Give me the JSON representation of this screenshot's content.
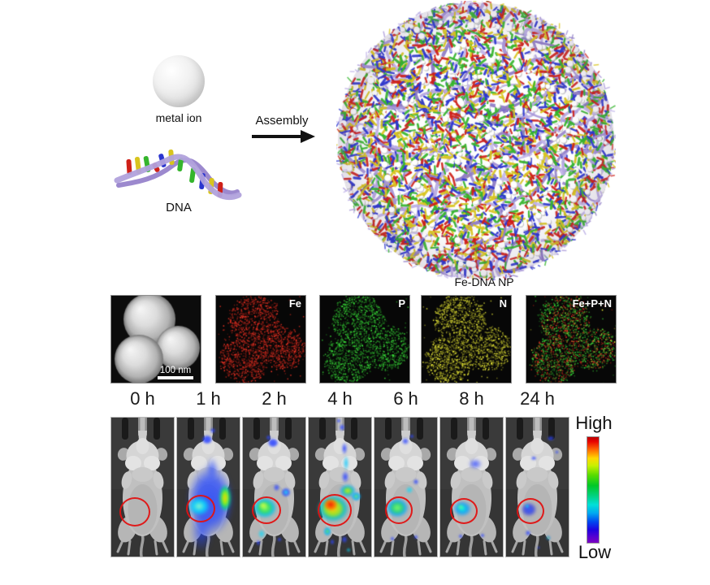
{
  "figure": {
    "schematic": {
      "metal_ion_label": "metal ion",
      "dna_label": "DNA",
      "assembly_label": "Assembly",
      "product_label": "Fe-DNA NP"
    },
    "em_row": {
      "tem_scale_bar": "100 nm",
      "panels": [
        {
          "label": ""
        },
        {
          "label": "Fe"
        },
        {
          "label": "P"
        },
        {
          "label": "N"
        },
        {
          "label": "Fe+P+N"
        }
      ]
    },
    "imaging": {
      "timepoints": [
        "0 h",
        "1 h",
        "2 h",
        "4 h",
        "6 h",
        "8 h",
        "24 h"
      ],
      "colorbar": {
        "high_label": "High",
        "low_label": "Low"
      }
    },
    "colors": {
      "fe_map": "#d42a1e",
      "p_map": "#2fb52f",
      "n_map": "#c6c62e",
      "dna_ribbon": "#b1a2dc",
      "dna_ribbon_back": "#9c89ce",
      "rod_red": "#cf2018",
      "rod_yellow": "#d8c41e",
      "rod_green": "#35b52c",
      "rod_blue": "#2b35cf",
      "tumor_circle": "#e11212",
      "colorbar_top": "#e80000",
      "colorbar_bottom": "#7a00c0"
    }
  }
}
